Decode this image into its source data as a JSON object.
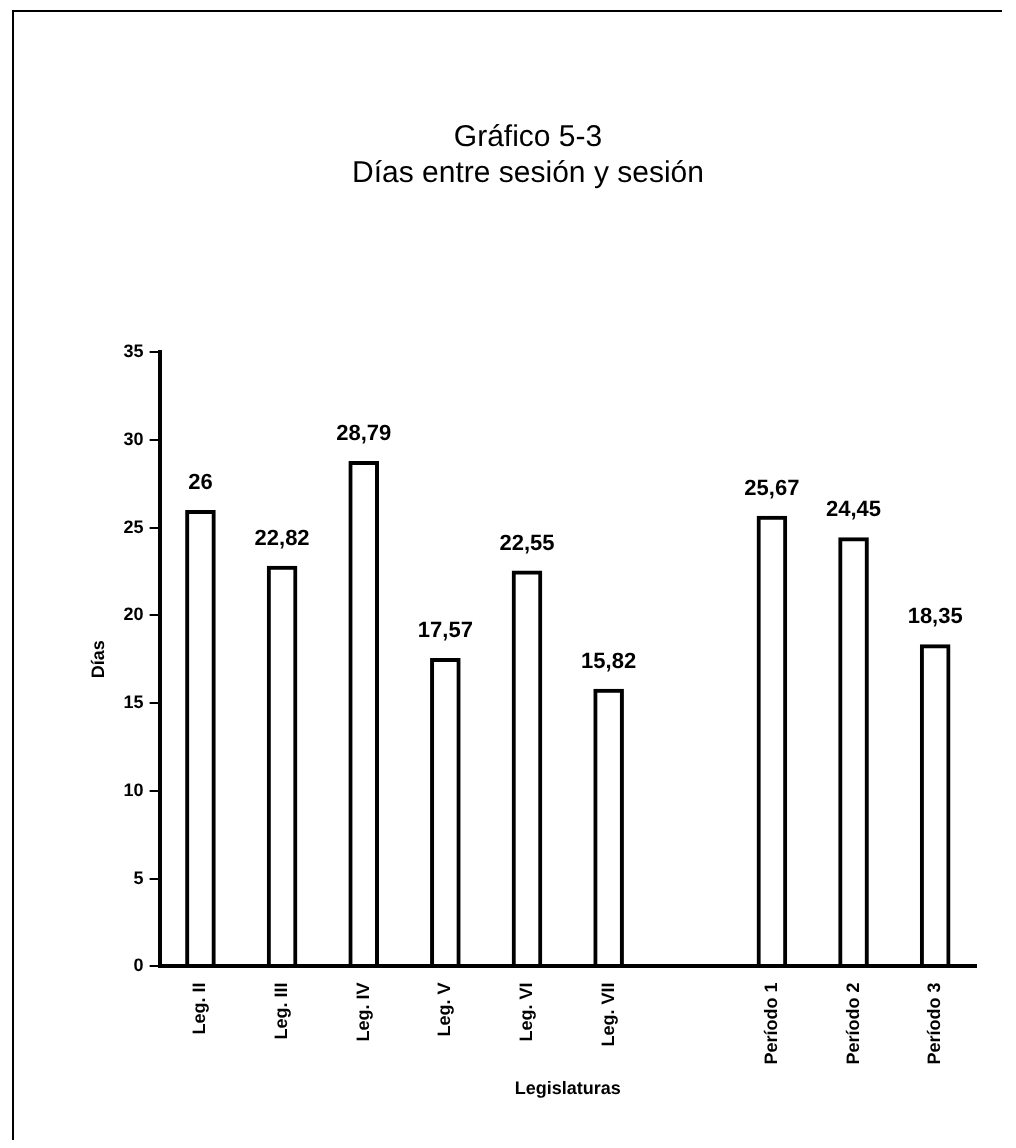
{
  "chart_data": {
    "type": "bar",
    "title": [
      "Gráfico 5-3",
      "Días entre sesión y sesión"
    ],
    "xlabel": "Legislaturas",
    "ylabel": "Días",
    "categories": [
      "Leg. II",
      "Leg. III",
      "Leg. IV",
      "Leg. V",
      "Leg. VI",
      "Leg. VII",
      null,
      "Período 1",
      "Período 2",
      "Período 3"
    ],
    "values": [
      26,
      22.82,
      28.79,
      17.57,
      22.55,
      15.82,
      null,
      25.67,
      24.45,
      18.35
    ],
    "value_labels": [
      "26",
      "22,82",
      "28,79",
      "17,57",
      "22,55",
      "15,82",
      null,
      "25,67",
      "24,45",
      "18,35"
    ],
    "color": "#000000",
    "ylim": [
      0,
      35
    ],
    "yticks": [
      0,
      5,
      10,
      15,
      20,
      25,
      30,
      35
    ],
    "grid": false,
    "legend": false
  }
}
